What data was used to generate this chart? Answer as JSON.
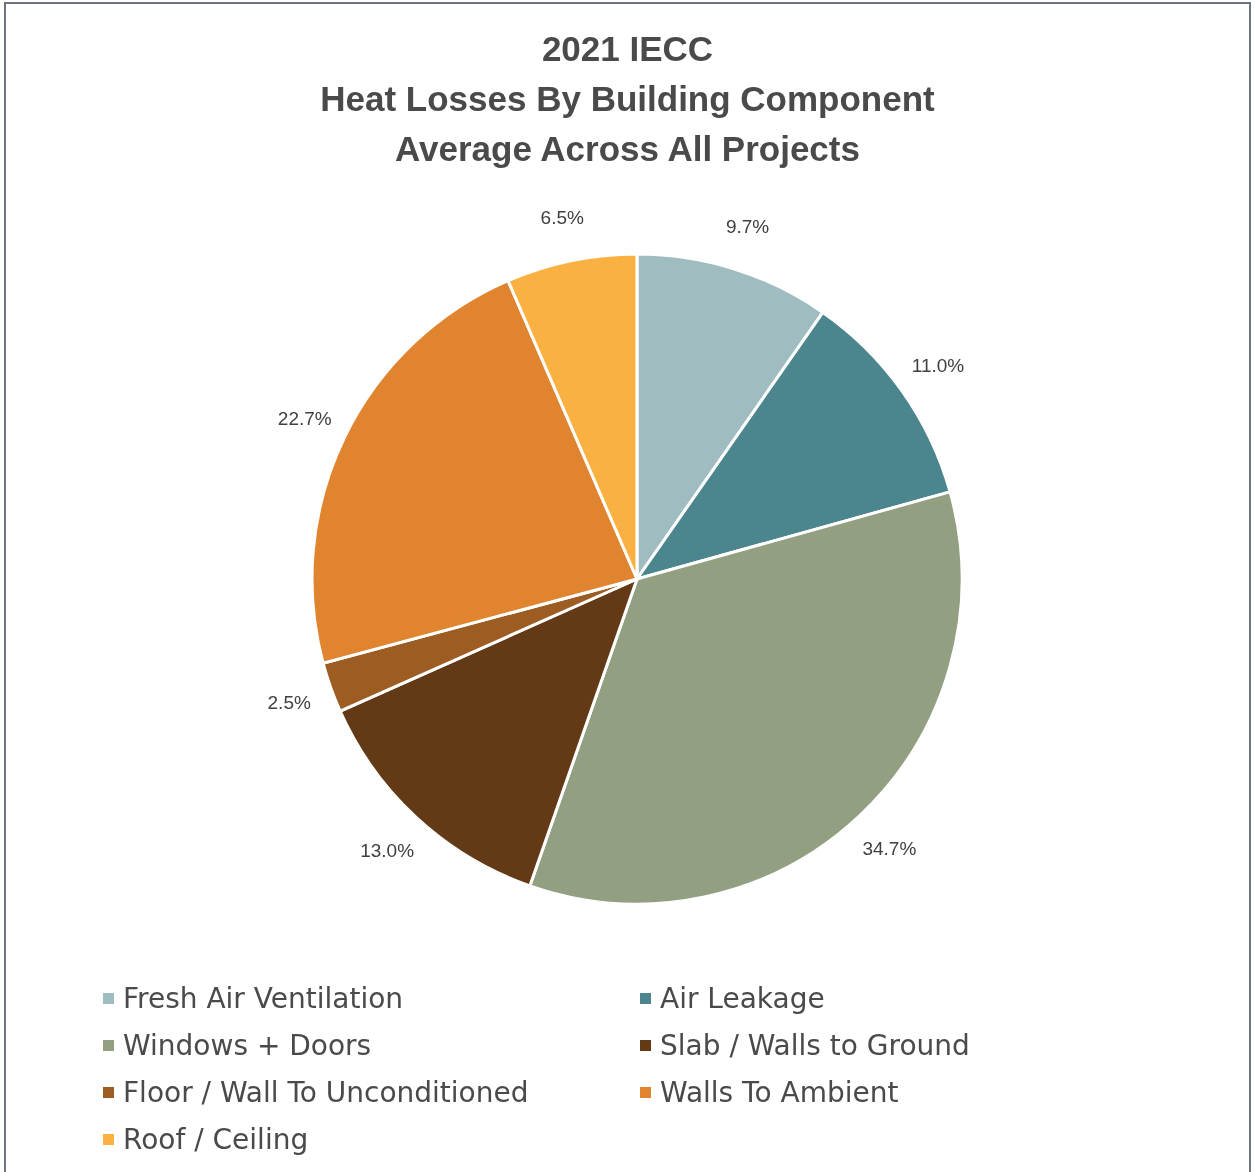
{
  "chart_data": {
    "type": "pie",
    "title": "2021 IECC\nHeat Losses By Building Component\nAverage Across All Projects",
    "categories": [
      "Fresh Air Ventilation",
      "Air Leakage",
      "Windows + Doors",
      "Slab / Walls to Ground",
      "Floor / Wall To Unconditioned",
      "Walls To Ambient",
      "Roof / Ceiling"
    ],
    "values": [
      9.7,
      11.0,
      34.7,
      13.0,
      2.5,
      22.7,
      6.5
    ],
    "value_labels": [
      "9.7%",
      "11.0%",
      "34.7%",
      "13.0%",
      "2.5%",
      "22.7%",
      "6.5%"
    ],
    "colors": [
      "#9fbcc0",
      "#4b858d",
      "#939f81",
      "#643a16",
      "#9d5c22",
      "#e0842f",
      "#fbb042"
    ],
    "legend": "bottom"
  }
}
